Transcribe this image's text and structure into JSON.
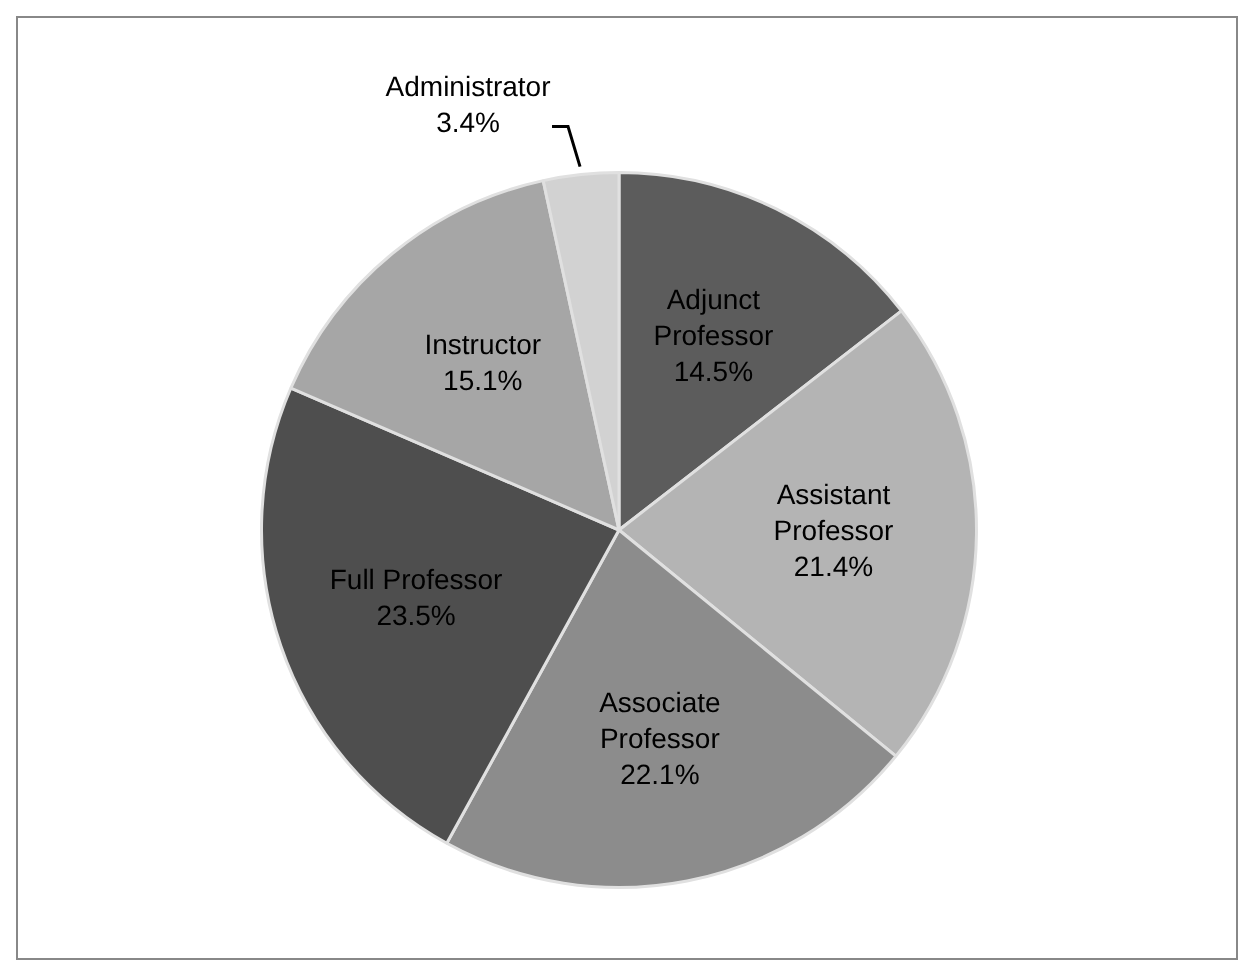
{
  "chart_data": {
    "type": "pie",
    "categories": [
      "Adjunct Professor",
      "Assistant Professor",
      "Associate Professor",
      "Full Professor",
      "Instructor",
      "Administrator"
    ],
    "values": [
      14.5,
      21.4,
      22.1,
      23.5,
      15.1,
      3.4
    ],
    "colors": [
      "#5c5c5c",
      "#b4b4b4",
      "#8c8c8c",
      "#4e4e4e",
      "#a6a6a6",
      "#d2d2d2"
    ],
    "value_labels": [
      "14.5%",
      "21.4%",
      "22.1%",
      "23.5%",
      "15.1%",
      "3.4%"
    ],
    "legend": false
  }
}
